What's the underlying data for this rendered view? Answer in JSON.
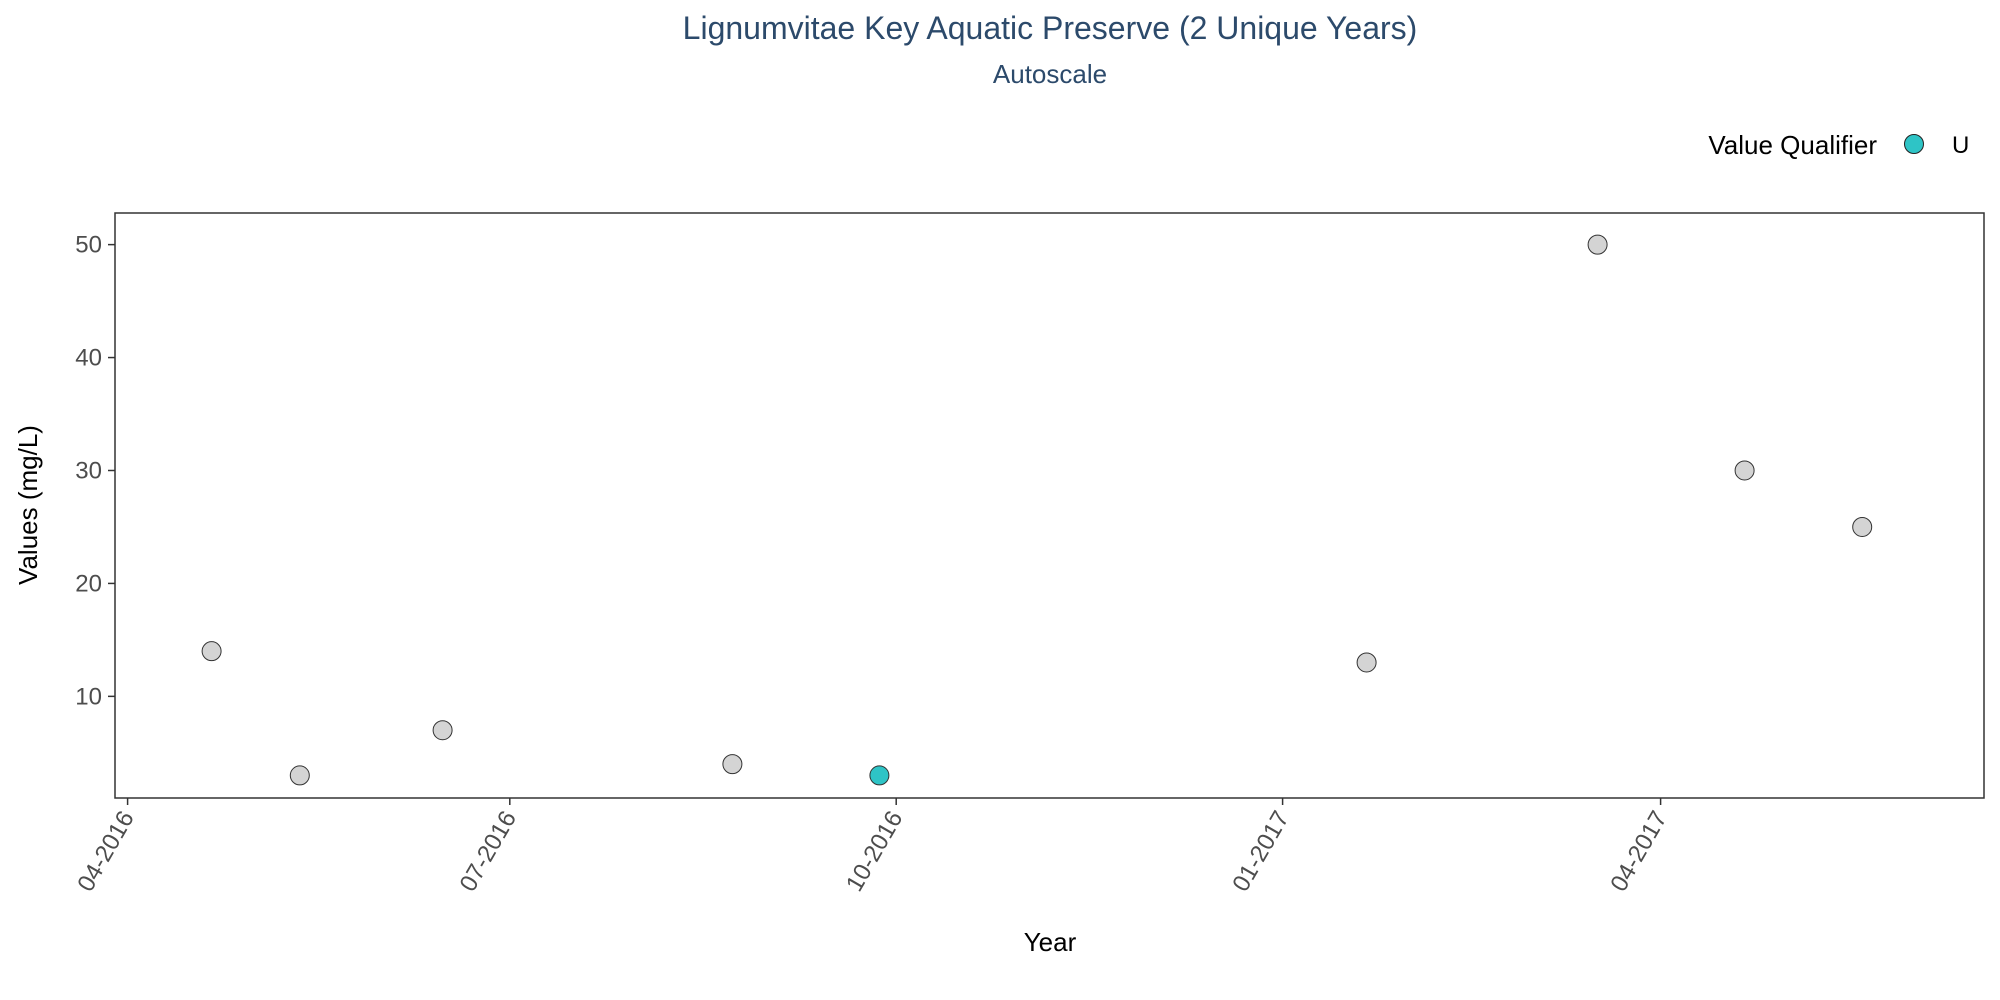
{
  "chart_data": {
    "type": "scatter",
    "title": "Lignumvitae Key Aquatic Preserve (2 Unique Years)",
    "subtitle": "Autoscale",
    "xlabel": "Year",
    "ylabel": "Values (mg/L)",
    "x_ticks": [
      {
        "date": "2016-04-01",
        "label": "04-2016"
      },
      {
        "date": "2016-07-01",
        "label": "07-2016"
      },
      {
        "date": "2016-10-01",
        "label": "10-2016"
      },
      {
        "date": "2017-01-01",
        "label": "01-2017"
      },
      {
        "date": "2017-04-01",
        "label": "04-2017"
      }
    ],
    "y_ticks": [
      10,
      20,
      30,
      40,
      50
    ],
    "xlim": [
      "2016-03-29",
      "2017-06-17"
    ],
    "ylim": [
      1,
      52.8
    ],
    "grid": false,
    "legend": {
      "title": "Value Qualifier",
      "position": "top-right",
      "entries": [
        {
          "label": "U",
          "color": "#2ec4c6"
        }
      ]
    },
    "colors": {
      "default_point": "#d4d4d4",
      "qualifier_U": "#2ec4c6",
      "title": "#2c4a6b"
    },
    "series": [
      {
        "points": [
          {
            "x": "2016-04-21",
            "y": 14,
            "qualifier": ""
          },
          {
            "x": "2016-05-12",
            "y": 3,
            "qualifier": ""
          },
          {
            "x": "2016-06-15",
            "y": 7,
            "qualifier": ""
          },
          {
            "x": "2016-08-23",
            "y": 4,
            "qualifier": ""
          },
          {
            "x": "2016-09-27",
            "y": 3,
            "qualifier": "U"
          },
          {
            "x": "2017-01-21",
            "y": 13,
            "qualifier": ""
          },
          {
            "x": "2017-03-17",
            "y": 50,
            "qualifier": ""
          },
          {
            "x": "2017-04-21",
            "y": 30,
            "qualifier": ""
          },
          {
            "x": "2017-05-19",
            "y": 25,
            "qualifier": ""
          }
        ]
      }
    ]
  }
}
